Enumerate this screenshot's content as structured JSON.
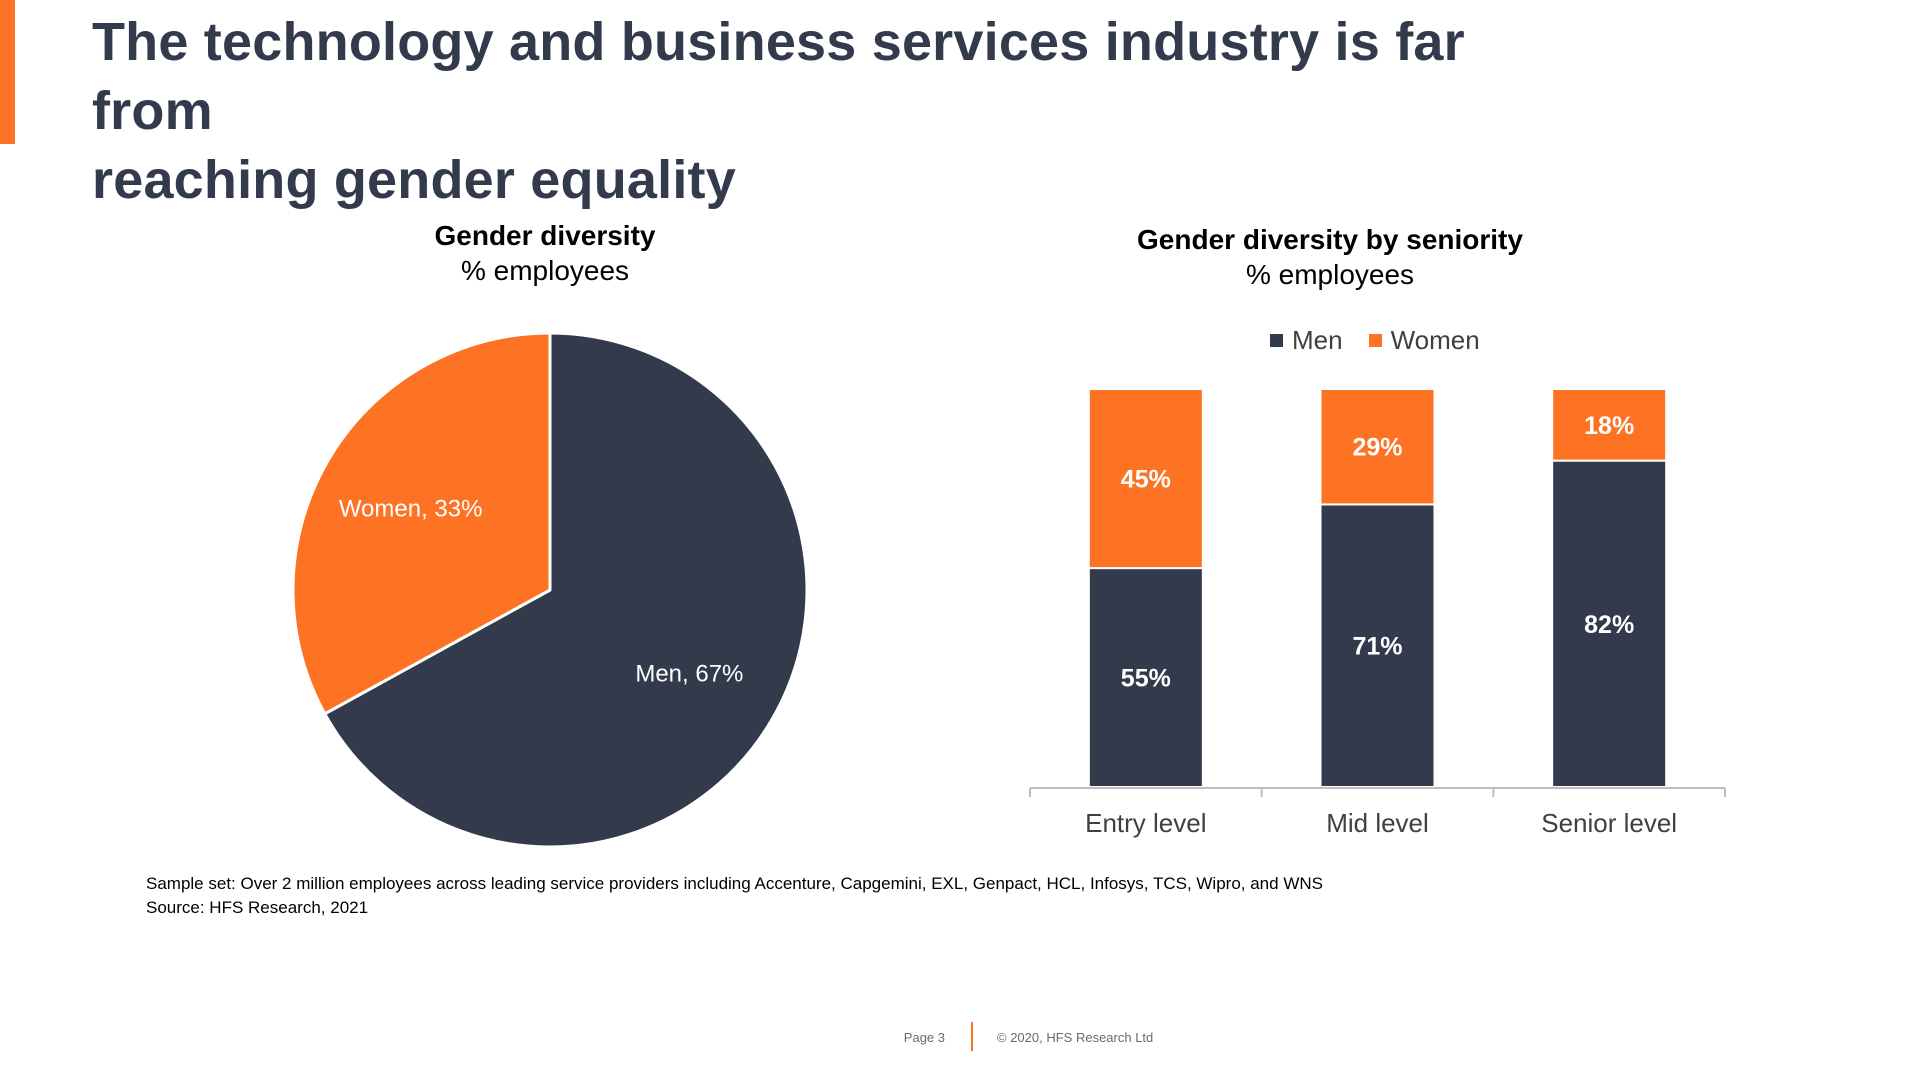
{
  "slide": {
    "title_line1": "The technology and business services industry is far from",
    "title_line2": "reaching gender equality",
    "accent_color": "#fd7223",
    "dark_color": "#333a4c"
  },
  "chart_data": [
    {
      "type": "pie",
      "title": "Gender diversity",
      "subtitle": "% employees",
      "slices": [
        {
          "name": "Men",
          "value": 67,
          "label": "Men, 67%",
          "color": "#333a4c"
        },
        {
          "name": "Women",
          "value": 33,
          "label": "Women, 33%",
          "color": "#fd7223"
        }
      ]
    },
    {
      "type": "bar",
      "stacked": true,
      "title": "Gender diversity by seniority",
      "subtitle": "% employees",
      "categories": [
        "Entry level",
        "Mid level",
        "Senior level"
      ],
      "series": [
        {
          "name": "Men",
          "values": [
            55,
            71,
            82
          ],
          "labels": [
            "55%",
            "71%",
            "82%"
          ],
          "color": "#333a4c"
        },
        {
          "name": "Women",
          "values": [
            45,
            29,
            18
          ],
          "labels": [
            "45%",
            "29%",
            "18%"
          ],
          "color": "#fd7223"
        }
      ],
      "ylim": [
        0,
        100
      ],
      "legend": "top-center"
    }
  ],
  "footnote": {
    "line1": "Sample set: Over 2 million employees across leading service providers including Accenture, Capgemini, EXL, Genpact, HCL, Infosys, TCS, Wipro, and WNS",
    "line2": "Source: HFS Research, 2021"
  },
  "footer": {
    "page": "Page 3",
    "copyright": "© 2020, HFS Research Ltd"
  }
}
